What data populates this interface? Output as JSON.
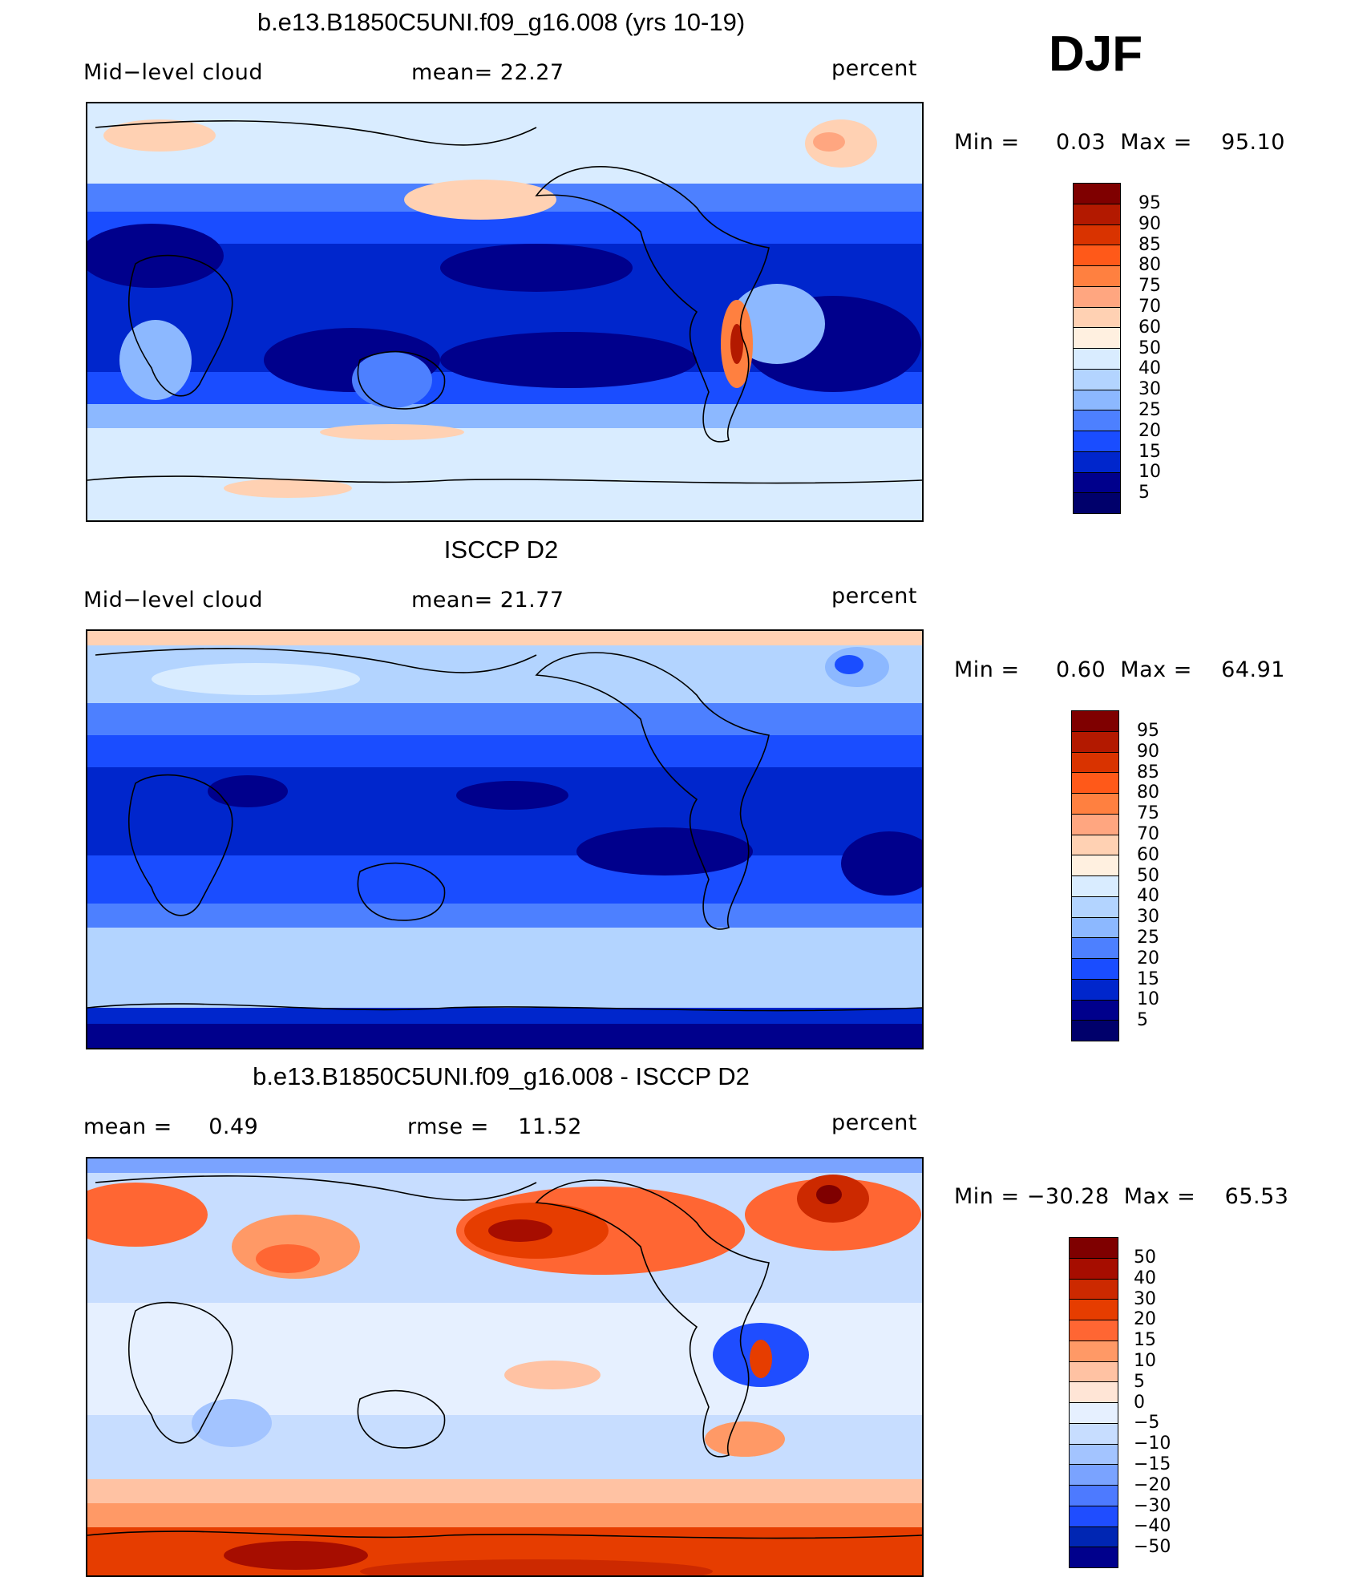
{
  "season": "DJF",
  "panels": [
    {
      "title": "b.e13.B1850C5UNI.f09_g16.008 (yrs 10-19)",
      "left_label": "Mid−level cloud",
      "mid_label": "mean=   22.27",
      "right_label": "percent",
      "minmax": "Min =     0.03  Max =    95.10",
      "levels": [
        "95",
        "90",
        "85",
        "80",
        "75",
        "70",
        "60",
        "50",
        "40",
        "30",
        "25",
        "20",
        "15",
        "10",
        "5"
      ],
      "palette": "abs"
    },
    {
      "title": "ISCCP D2",
      "left_label": "Mid−level cloud",
      "mid_label": "mean=   21.77",
      "right_label": "percent",
      "minmax": "Min =     0.60  Max =    64.91",
      "levels": [
        "95",
        "90",
        "85",
        "80",
        "75",
        "70",
        "60",
        "50",
        "40",
        "30",
        "25",
        "20",
        "15",
        "10",
        "5"
      ],
      "palette": "abs"
    },
    {
      "title": "b.e13.B1850C5UNI.f09_g16.008 - ISCCP D2",
      "left_label": "mean =     0.49",
      "mid_label": "rmse =    11.52",
      "right_label": "percent",
      "minmax": "Min = −30.28  Max =    65.53",
      "levels": [
        "50",
        "40",
        "30",
        "20",
        "15",
        "10",
        "5",
        "0",
        "−5",
        "−10",
        "−15",
        "−20",
        "−30",
        "−40",
        "−50"
      ],
      "palette": "diff"
    }
  ],
  "colors": {
    "abs": [
      "#7f0000",
      "#b31900",
      "#d93300",
      "#ff5919",
      "#ff8040",
      "#ffa680",
      "#ffd1b3",
      "#fff0e0",
      "#d9ecff",
      "#b3d4ff",
      "#8cb8ff",
      "#4d80ff",
      "#1a4dff",
      "#0026cc",
      "#00008c",
      "#00006b"
    ],
    "diff": [
      "#7f0000",
      "#a60d00",
      "#cc2900",
      "#e63d00",
      "#ff6633",
      "#ff9966",
      "#ffc2a3",
      "#ffe5d6",
      "#e6f0ff",
      "#c7ddff",
      "#a3c4ff",
      "#7aa3ff",
      "#4d7aff",
      "#1f4dff",
      "#0026b3",
      "#00008c"
    ]
  }
}
